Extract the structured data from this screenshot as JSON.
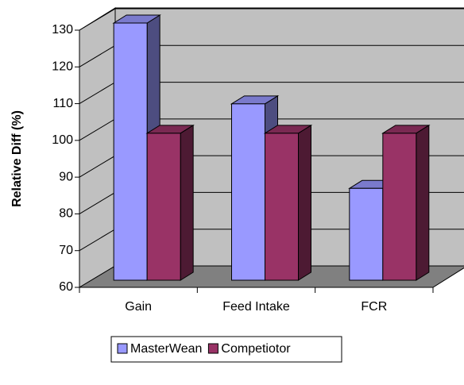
{
  "chart_data": {
    "type": "bar3d",
    "y_label": "Relative Diff (%)",
    "categories": [
      "Gain",
      "Feed Intake",
      "FCR"
    ],
    "series": [
      {
        "name": "MasterWean",
        "color": "#9999ff",
        "values": [
          130,
          108,
          85
        ]
      },
      {
        "name": "Competiotor",
        "color": "#993366",
        "values": [
          100,
          100,
          100
        ]
      }
    ],
    "ylim": [
      60,
      130
    ],
    "yticks": [
      60,
      70,
      80,
      90,
      100,
      110,
      120,
      130
    ],
    "grid": true,
    "legend": "bottom"
  }
}
